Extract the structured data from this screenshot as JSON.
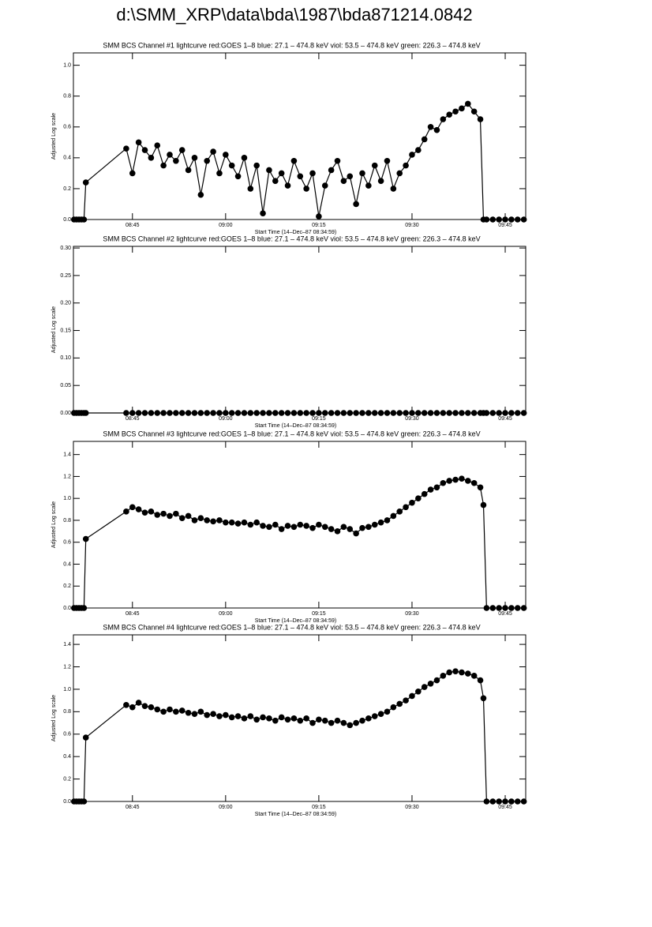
{
  "title": "d:\\SMM_XRP\\data\\bda\\1987\\bda871214.0842",
  "chart_data": [
    {
      "type": "line",
      "title": "SMM BCS Channel #1 lightcurve  red:GOES 1–8  blue: 27.1 – 474.8 keV  viol: 53.5 – 474.8 keV  green: 226.3 – 474.8 keV",
      "x_label": "Start Time (14–Dec–87 08:34:59)",
      "y_label": "Adjusted Log scale",
      "color": "#000000",
      "markers": true,
      "xlim": [
        515.5,
        588.3
      ],
      "xticks": [
        {
          "value": 525,
          "label": "08:45"
        },
        {
          "value": 540,
          "label": "09:00"
        },
        {
          "value": 555,
          "label": "09:15"
        },
        {
          "value": 570,
          "label": "09:30"
        },
        {
          "value": 585,
          "label": "09:45"
        }
      ],
      "ylim": [
        0,
        1.08
      ],
      "yticks": [
        {
          "value": 0,
          "label": "0.0"
        },
        {
          "value": 0.2,
          "label": "0.2"
        },
        {
          "value": 0.4,
          "label": "0.4"
        },
        {
          "value": 0.6,
          "label": "0.6"
        },
        {
          "value": 0.8,
          "label": "0.8"
        },
        {
          "value": 1.0,
          "label": "1.0"
        }
      ],
      "x": [
        515.6,
        516.0,
        516.4,
        516.8,
        517.2,
        517.5,
        524,
        525,
        526,
        527,
        528,
        529,
        530,
        531,
        532,
        533,
        534,
        535,
        536,
        537,
        538,
        539,
        540,
        541,
        542,
        543,
        544,
        545,
        546,
        547,
        548,
        549,
        550,
        551,
        552,
        553,
        554,
        555,
        556,
        557,
        558,
        559,
        560,
        561,
        562,
        563,
        564,
        565,
        566,
        567,
        568,
        569,
        570,
        571,
        572,
        573,
        574,
        575,
        576,
        577,
        578,
        579,
        580,
        581,
        581.5,
        582,
        583,
        584,
        585,
        586,
        587,
        588
      ],
      "values": [
        0,
        0,
        0,
        0,
        0,
        0.24,
        0.46,
        0.3,
        0.5,
        0.45,
        0.4,
        0.48,
        0.35,
        0.42,
        0.38,
        0.45,
        0.32,
        0.4,
        0.16,
        0.38,
        0.44,
        0.3,
        0.42,
        0.35,
        0.28,
        0.4,
        0.2,
        0.35,
        0.04,
        0.32,
        0.25,
        0.3,
        0.22,
        0.38,
        0.28,
        0.2,
        0.3,
        0.02,
        0.22,
        0.32,
        0.38,
        0.25,
        0.28,
        0.1,
        0.3,
        0.22,
        0.35,
        0.25,
        0.38,
        0.2,
        0.3,
        0.35,
        0.42,
        0.45,
        0.52,
        0.6,
        0.58,
        0.65,
        0.68,
        0.7,
        0.72,
        0.75,
        0.7,
        0.65,
        0,
        0,
        0,
        0,
        0,
        0,
        0,
        0
      ]
    },
    {
      "type": "line",
      "title": "SMM BCS Channel #2 lightcurve  red:GOES 1–8  blue: 27.1 – 474.8 keV  viol: 53.5 – 474.8 keV  green: 226.3 – 474.8 keV",
      "x_label": "Start Time (14–Dec–87 08:34:59)",
      "y_label": "Adjusted Log scale",
      "color": "#000000",
      "markers": true,
      "xlim": [
        515.5,
        588.3
      ],
      "xticks": [
        {
          "value": 525,
          "label": "08:45"
        },
        {
          "value": 540,
          "label": "09:00"
        },
        {
          "value": 555,
          "label": "09:15"
        },
        {
          "value": 570,
          "label": "09:30"
        },
        {
          "value": 585,
          "label": "09:45"
        }
      ],
      "ylim": [
        0,
        0.303
      ],
      "yticks": [
        {
          "value": 0,
          "label": "0.00"
        },
        {
          "value": 0.05,
          "label": "0.05"
        },
        {
          "value": 0.1,
          "label": "0.10"
        },
        {
          "value": 0.15,
          "label": "0.15"
        },
        {
          "value": 0.2,
          "label": "0.20"
        },
        {
          "value": 0.25,
          "label": "0.25"
        },
        {
          "value": 0.3,
          "label": "0.30"
        }
      ],
      "x": [
        515.6,
        516.0,
        516.4,
        516.8,
        517.2,
        517.5,
        524,
        525,
        526,
        527,
        528,
        529,
        530,
        531,
        532,
        533,
        534,
        535,
        536,
        537,
        538,
        539,
        540,
        541,
        542,
        543,
        544,
        545,
        546,
        547,
        548,
        549,
        550,
        551,
        552,
        553,
        554,
        555,
        556,
        557,
        558,
        559,
        560,
        561,
        562,
        563,
        564,
        565,
        566,
        567,
        568,
        569,
        570,
        571,
        572,
        573,
        574,
        575,
        576,
        577,
        578,
        579,
        580,
        581,
        581.5,
        582,
        583,
        584,
        585,
        586,
        587,
        588
      ],
      "values": [
        0,
        0,
        0,
        0,
        0,
        0,
        0,
        0,
        0,
        0,
        0,
        0,
        0,
        0,
        0,
        0,
        0,
        0,
        0,
        0,
        0,
        0,
        0,
        0,
        0,
        0,
        0,
        0,
        0,
        0,
        0,
        0,
        0,
        0,
        0,
        0,
        0,
        0,
        0,
        0,
        0,
        0,
        0,
        0,
        0,
        0,
        0,
        0,
        0,
        0,
        0,
        0,
        0,
        0,
        0,
        0,
        0,
        0,
        0,
        0,
        0,
        0,
        0,
        0,
        0,
        0,
        0,
        0,
        0,
        0,
        0,
        0
      ]
    },
    {
      "type": "line",
      "title": "SMM BCS Channel #3 lightcurve  red:GOES 1–8  blue: 27.1 – 474.8 keV  viol: 53.5 – 474.8 keV  green: 226.3 – 474.8 keV",
      "x_label": "Start Time (14–Dec–87 08:34:59)",
      "y_label": "Adjusted Log scale",
      "color": "#000000",
      "markers": true,
      "xlim": [
        515.5,
        588.3
      ],
      "xticks": [
        {
          "value": 525,
          "label": "08:45"
        },
        {
          "value": 540,
          "label": "09:00"
        },
        {
          "value": 555,
          "label": "09:15"
        },
        {
          "value": 570,
          "label": "09:30"
        },
        {
          "value": 585,
          "label": "09:45"
        }
      ],
      "ylim": [
        0,
        1.52
      ],
      "yticks": [
        {
          "value": 0,
          "label": "0.0"
        },
        {
          "value": 0.2,
          "label": "0.2"
        },
        {
          "value": 0.4,
          "label": "0.4"
        },
        {
          "value": 0.6,
          "label": "0.6"
        },
        {
          "value": 0.8,
          "label": "0.8"
        },
        {
          "value": 1.0,
          "label": "1.0"
        },
        {
          "value": 1.2,
          "label": "1.2"
        },
        {
          "value": 1.4,
          "label": "1.4"
        }
      ],
      "x": [
        515.6,
        516.0,
        516.4,
        516.8,
        517.2,
        517.5,
        524,
        525,
        526,
        527,
        528,
        529,
        530,
        531,
        532,
        533,
        534,
        535,
        536,
        537,
        538,
        539,
        540,
        541,
        542,
        543,
        544,
        545,
        546,
        547,
        548,
        549,
        550,
        551,
        552,
        553,
        554,
        555,
        556,
        557,
        558,
        559,
        560,
        561,
        562,
        563,
        564,
        565,
        566,
        567,
        568,
        569,
        570,
        571,
        572,
        573,
        574,
        575,
        576,
        577,
        578,
        579,
        580,
        581,
        581.5,
        582,
        583,
        584,
        585,
        586,
        587,
        588
      ],
      "values": [
        0,
        0,
        0,
        0,
        0,
        0.63,
        0.88,
        0.92,
        0.9,
        0.87,
        0.88,
        0.85,
        0.86,
        0.84,
        0.86,
        0.82,
        0.84,
        0.8,
        0.82,
        0.8,
        0.79,
        0.8,
        0.78,
        0.78,
        0.77,
        0.78,
        0.76,
        0.78,
        0.75,
        0.74,
        0.76,
        0.72,
        0.75,
        0.74,
        0.76,
        0.75,
        0.73,
        0.76,
        0.74,
        0.72,
        0.7,
        0.74,
        0.72,
        0.68,
        0.73,
        0.74,
        0.76,
        0.78,
        0.8,
        0.84,
        0.88,
        0.92,
        0.96,
        1.0,
        1.04,
        1.08,
        1.1,
        1.14,
        1.16,
        1.17,
        1.18,
        1.16,
        1.14,
        1.1,
        0.94,
        0,
        0,
        0,
        0,
        0,
        0,
        0
      ]
    },
    {
      "type": "line",
      "title": "SMM BCS Channel #4 lightcurve  red:GOES 1–8  blue: 27.1 – 474.8 keV  viol: 53.5 – 474.8 keV  green: 226.3 – 474.8 keV",
      "x_label": "Start Time (14–Dec–87 08:34:59)",
      "y_label": "Adjusted Log scale",
      "color": "#000000",
      "markers": true,
      "xlim": [
        515.5,
        588.3
      ],
      "xticks": [
        {
          "value": 525,
          "label": "08:45"
        },
        {
          "value": 540,
          "label": "09:00"
        },
        {
          "value": 555,
          "label": "09:15"
        },
        {
          "value": 570,
          "label": "09:30"
        },
        {
          "value": 585,
          "label": "09:45"
        }
      ],
      "ylim": [
        0,
        1.485
      ],
      "yticks": [
        {
          "value": 0,
          "label": "0.0"
        },
        {
          "value": 0.2,
          "label": "0.2"
        },
        {
          "value": 0.4,
          "label": "0.4"
        },
        {
          "value": 0.6,
          "label": "0.6"
        },
        {
          "value": 0.8,
          "label": "0.8"
        },
        {
          "value": 1.0,
          "label": "1.0"
        },
        {
          "value": 1.2,
          "label": "1.2"
        },
        {
          "value": 1.4,
          "label": "1.4"
        }
      ],
      "x": [
        515.6,
        516.0,
        516.4,
        516.8,
        517.2,
        517.5,
        524,
        525,
        526,
        527,
        528,
        529,
        530,
        531,
        532,
        533,
        534,
        535,
        536,
        537,
        538,
        539,
        540,
        541,
        542,
        543,
        544,
        545,
        546,
        547,
        548,
        549,
        550,
        551,
        552,
        553,
        554,
        555,
        556,
        557,
        558,
        559,
        560,
        561,
        562,
        563,
        564,
        565,
        566,
        567,
        568,
        569,
        570,
        571,
        572,
        573,
        574,
        575,
        576,
        577,
        578,
        579,
        580,
        581,
        581.5,
        582,
        583,
        584,
        585,
        586,
        587,
        588
      ],
      "values": [
        0,
        0,
        0,
        0,
        0,
        0.57,
        0.86,
        0.84,
        0.88,
        0.85,
        0.84,
        0.82,
        0.8,
        0.82,
        0.8,
        0.81,
        0.79,
        0.78,
        0.8,
        0.77,
        0.78,
        0.76,
        0.77,
        0.75,
        0.76,
        0.74,
        0.76,
        0.73,
        0.75,
        0.74,
        0.72,
        0.75,
        0.73,
        0.74,
        0.72,
        0.74,
        0.7,
        0.73,
        0.72,
        0.7,
        0.72,
        0.7,
        0.68,
        0.7,
        0.72,
        0.74,
        0.76,
        0.78,
        0.8,
        0.84,
        0.87,
        0.9,
        0.94,
        0.98,
        1.02,
        1.05,
        1.08,
        1.12,
        1.15,
        1.16,
        1.15,
        1.14,
        1.12,
        1.08,
        0.92,
        0,
        0,
        0,
        0,
        0,
        0,
        0
      ]
    }
  ]
}
